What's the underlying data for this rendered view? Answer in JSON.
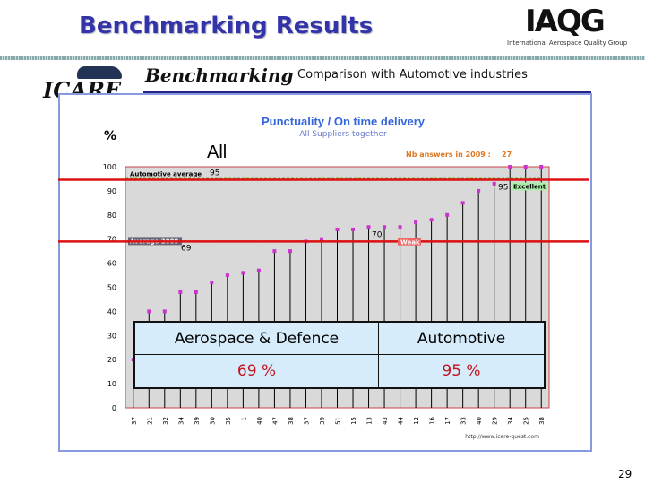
{
  "header": {
    "title": "Benchmarking Results",
    "subtitle": "Comparison with Automotive industries",
    "page_number": "29"
  },
  "logos": {
    "iaqg": "IAQG",
    "iaqg_sub": "International Aerospace Quality Group",
    "icare": "ICARE",
    "benchmarking": "Benchmarking"
  },
  "comparison_table": {
    "headers": [
      "Aerospace & Defence",
      "Automotive"
    ],
    "values": [
      "69 %",
      "95 %"
    ]
  },
  "colors": {
    "accent": "#3333aa",
    "marker": "#cc33cc",
    "highlight_line": "#dd1111",
    "plot_bg": "#d9d9d9"
  },
  "chart_data": {
    "type": "scatter",
    "title": "Punctuality / On time delivery",
    "subtitle": "All Suppliers together",
    "group_label": "All",
    "ylabel": "%",
    "ylim": [
      0,
      100
    ],
    "yticks": [
      "0",
      "10",
      "20",
      "30",
      "40",
      "50",
      "60",
      "70",
      "80",
      "90",
      "100"
    ],
    "answers_label": "Nb answers in 2009 :",
    "answers_count": "27",
    "categories": [
      "37",
      "21",
      "32",
      "34",
      "39",
      "30",
      "35",
      "1",
      "40",
      "47",
      "38",
      "37",
      "39",
      "51",
      "15",
      "13",
      "43",
      "44",
      "12",
      "16",
      "17",
      "33",
      "40",
      "29",
      "34",
      "25",
      "38"
    ],
    "values": [
      20,
      40,
      40,
      48,
      48,
      52,
      55,
      56,
      57,
      65,
      65,
      69,
      70,
      74,
      74,
      75,
      75,
      75,
      77,
      78,
      80,
      85,
      90,
      93,
      100,
      100,
      100
    ],
    "reference_lines": [
      {
        "label": "Automotive average",
        "value": 95,
        "value_label": "95",
        "color": "#66aa33"
      },
      {
        "label": "Average 2009",
        "value": 69,
        "value_label": "69",
        "color": "#884466"
      }
    ],
    "thresholds": [
      {
        "label": "Excellent",
        "value": 95,
        "value_label": "95"
      },
      {
        "label": "Weak",
        "value": 70,
        "value_label": "70"
      }
    ],
    "source": "http://www.icare-quest.com",
    "grid": false
  }
}
